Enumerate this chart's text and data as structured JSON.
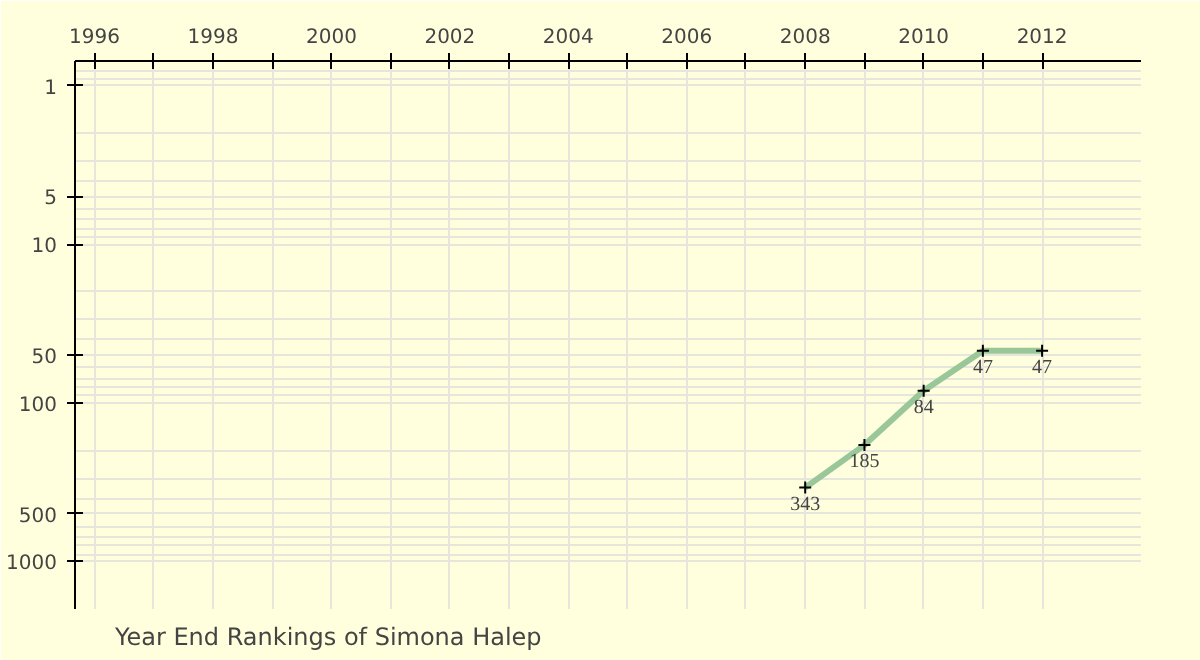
{
  "chart_data": {
    "type": "line",
    "title": "Year End Rankings of  Simona Halep",
    "x": [
      2008,
      2009,
      2010,
      2011,
      2012
    ],
    "series": [
      {
        "color": "#99c799",
        "values": [
          343,
          185,
          84,
          47,
          47
        ]
      }
    ],
    "data_labels": true,
    "marker": "cross",
    "log": "y",
    "grid": true,
    "xlim": [
      1995.67,
      2013.67
    ],
    "ylim": [
      2000,
      0.7
    ],
    "xticks": [
      1996,
      {
        "value": 1997,
        "label": null
      },
      1998,
      {
        "value": 1999,
        "label": null
      },
      2000,
      {
        "value": 2001,
        "label": null
      },
      2002,
      {
        "value": 2003,
        "label": null
      },
      2004,
      {
        "value": 2005,
        "label": null
      },
      2006,
      {
        "value": 2007,
        "label": null
      },
      2008,
      {
        "value": 2009,
        "label": null
      },
      2010,
      {
        "value": 2011,
        "label": null
      },
      2012
    ],
    "yticks": [
      1,
      5,
      10,
      50,
      100,
      500,
      1000
    ]
  }
}
